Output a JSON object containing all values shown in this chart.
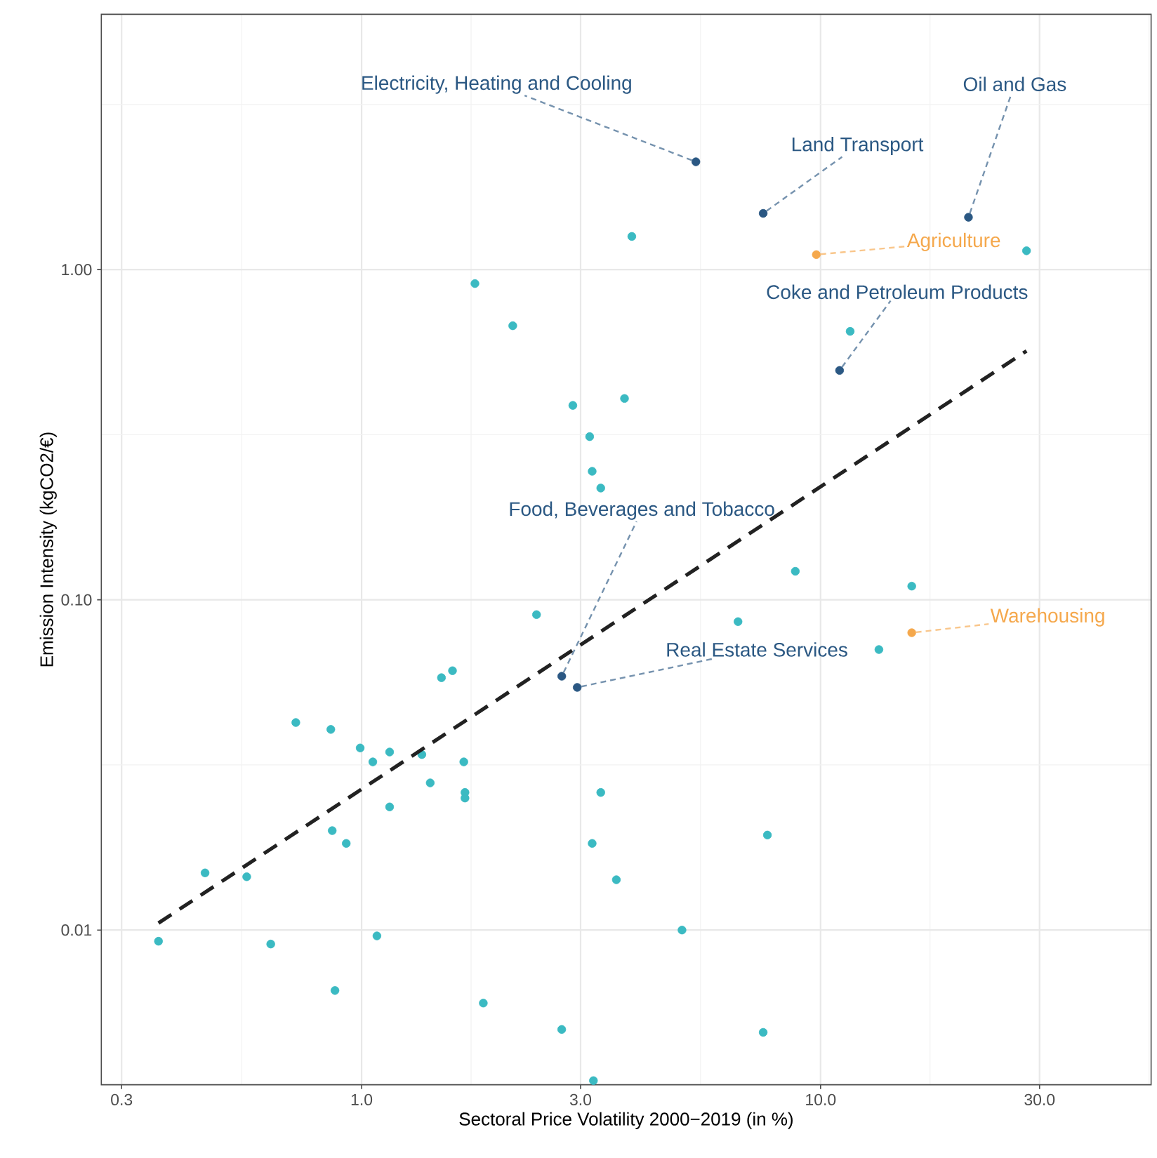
{
  "chart_data": {
    "type": "scatter",
    "xlabel": "Sectoral Price Volatility 2000−2019 (in %)",
    "ylabel": "Emission Intensity (kgCO2/€)",
    "log": "xy",
    "grid": true,
    "marker": "circle",
    "xlim": [
      0.271,
      52.5
    ],
    "ylim": [
      0.0034,
      5.93
    ],
    "xticks": [
      {
        "value": 0.3,
        "label": "0.3"
      },
      {
        "value": 1,
        "label": "1.0"
      },
      {
        "value": 3,
        "label": "3.0"
      },
      {
        "value": 10,
        "label": "10.0"
      },
      {
        "value": 30,
        "label": "30.0"
      }
    ],
    "yticks": [
      0.01,
      {
        "value": 0.1,
        "label": "0.10"
      },
      {
        "value": 1,
        "label": "1.00"
      }
    ],
    "series": [
      {
        "color": "#3bbac2",
        "x": [
          0.361,
          0.456,
          0.562,
          0.634,
          0.719,
          0.857,
          0.863,
          0.875,
          0.926,
          0.993,
          1.058,
          1.08,
          1.151,
          1.151,
          1.353,
          1.411,
          1.493,
          1.578,
          1.67,
          1.68,
          1.68,
          1.766,
          1.842,
          2.135,
          2.405,
          2.729,
          2.886,
          3.14,
          3.18,
          3.18,
          3.2,
          3.32,
          3.32,
          3.59,
          3.74,
          3.88,
          4.99,
          6.61,
          7.66,
          7.5,
          8.81,
          11.6,
          13.4,
          15.8,
          28.1
        ],
        "values": [
          0.00925,
          0.0149,
          0.0145,
          0.00907,
          0.0425,
          0.0405,
          0.02,
          0.00656,
          0.0183,
          0.0356,
          0.0323,
          0.0096,
          0.0346,
          0.0236,
          0.034,
          0.0279,
          0.0581,
          0.061,
          0.0323,
          0.0261,
          0.0251,
          0.907,
          0.00601,
          0.676,
          0.0902,
          0.005,
          0.388,
          0.312,
          0.245,
          0.0183,
          0.0035,
          0.218,
          0.0261,
          0.0142,
          0.407,
          1.26,
          0.01,
          0.0859,
          0.0194,
          0.0049,
          0.122,
          0.65,
          0.0707,
          0.11,
          1.14
        ]
      },
      {
        "type": "line",
        "line_style": "dashed",
        "marker": "none",
        "color": "#222222",
        "x": [
          0.361,
          28.1
        ],
        "values": [
          0.0105,
          0.567
        ]
      },
      {
        "name": "Electricity, Heating and Cooling",
        "color": "#2b5883",
        "x": [
          5.35
        ],
        "values": [
          2.12
        ]
      },
      {
        "name": "Land Transport",
        "color": "#2b5883",
        "x": [
          7.5
        ],
        "values": [
          1.48
        ]
      },
      {
        "name": "Oil and Gas",
        "color": "#2b5883",
        "x": [
          21.0
        ],
        "values": [
          1.44
        ]
      },
      {
        "name": "Agriculture",
        "color": "#f5a84c",
        "x": [
          9.79
        ],
        "values": [
          1.11
        ]
      },
      {
        "name": "Coke and Petroleum Products",
        "color": "#2b5883",
        "x": [
          11.0
        ],
        "values": [
          0.495
        ]
      },
      {
        "name": "Food, Beverages and Tobacco",
        "color": "#2b5883",
        "x": [
          2.73
        ],
        "values": [
          0.0587
        ]
      },
      {
        "name": "Real Estate Services",
        "color": "#2b5883",
        "x": [
          2.95
        ],
        "values": [
          0.0543
        ]
      },
      {
        "name": "Warehousing",
        "color": "#f5a84c",
        "x": [
          15.8
        ],
        "values": [
          0.0795
        ]
      }
    ]
  }
}
